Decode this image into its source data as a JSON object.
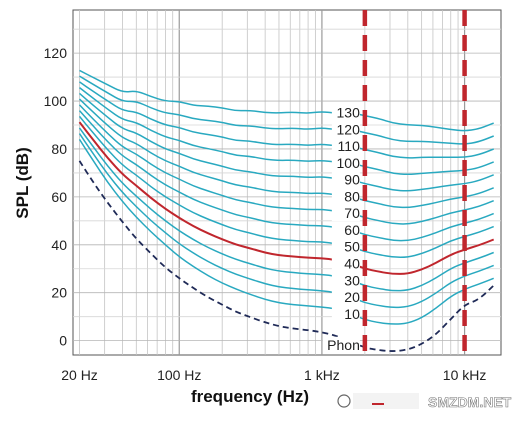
{
  "chart_data": {
    "type": "line",
    "title": "",
    "xlabel": "frequency (Hz)",
    "ylabel": "SPL (dB)",
    "x_scale": "log",
    "xlim": [
      18,
      18000
    ],
    "ylim": [
      -6,
      138
    ],
    "x_ticks": [
      {
        "value": 20,
        "label": "20 Hz"
      },
      {
        "value": 100,
        "label": "100 Hz"
      },
      {
        "value": 1000,
        "label": "1 kHz"
      },
      {
        "value": 10000,
        "label": "10 kHz"
      }
    ],
    "y_ticks": [
      0,
      20,
      40,
      60,
      80,
      100,
      120
    ],
    "grid": true,
    "phon_unit_label": "Phon",
    "phon_labels": [
      "10",
      "20",
      "30",
      "40",
      "50",
      "60",
      "70",
      "80",
      "90",
      "100",
      "110",
      "120",
      "130"
    ],
    "x_points": [
      20,
      25,
      31.5,
      40,
      50,
      63,
      80,
      100,
      125,
      160,
      200,
      250,
      315,
      400,
      500,
      630,
      800,
      1000,
      1250,
      1600,
      2000,
      2500,
      3150,
      4000,
      5000,
      6300,
      8000,
      10000,
      12500,
      16000
    ],
    "base_curve": [
      74,
      65,
      56,
      48,
      41.5,
      35.5,
      30,
      25,
      21,
      17,
      14,
      11.5,
      9.3,
      7.2,
      5.8,
      5,
      4.5,
      4,
      3.3,
      1.2,
      -1.3,
      -2.5,
      -3.2,
      -2.8,
      -0.5,
      3.5,
      8.5,
      11.5,
      13.5,
      16
    ],
    "series": [
      {
        "name": "Phon",
        "style": "dashed",
        "color": "#1f2a57",
        "values": [
          75,
          66,
          57.5,
          49.5,
          42.5,
          36.5,
          30.5,
          26,
          22,
          18,
          15,
          12,
          9.8,
          7.6,
          6,
          5,
          4.4,
          3.5,
          2.1,
          -0.5,
          -2.9,
          -4,
          -4.5,
          -3.8,
          -1.5,
          2.5,
          9,
          15,
          17,
          23
        ]
      },
      {
        "name": "10",
        "style": "solid",
        "color": "#29a9c0",
        "values": [
          84,
          75,
          66,
          58,
          51.5,
          45.5,
          40,
          35,
          31,
          27,
          24,
          21.5,
          19.3,
          17.2,
          15.8,
          15,
          14.5,
          14,
          13.3,
          11.2,
          8.7,
          7.5,
          6.8,
          7.2,
          9.5,
          13.5,
          18.5,
          21.5,
          23.5,
          26
        ]
      },
      {
        "name": "20",
        "style": "solid",
        "color": "#29a9c0",
        "values": [
          86.4,
          77.9,
          69.4,
          61.8,
          55.9,
          50.2,
          45,
          40.4,
          36.6,
          32.9,
          30.1,
          27.7,
          25.7,
          23.7,
          22.4,
          21.7,
          21.2,
          20.8,
          20.1,
          18.2,
          15.8,
          14.6,
          13.8,
          14.1,
          16.2,
          19.8,
          24.3,
          27,
          28.9,
          31.4
        ]
      },
      {
        "name": "30",
        "style": "solid",
        "color": "#29a9c0",
        "values": [
          88.8,
          80.8,
          72.8,
          65.6,
          60.3,
          54.9,
          50,
          45.8,
          42.2,
          38.8,
          36.2,
          33.9,
          32.1,
          30.2,
          29,
          28.4,
          27.9,
          27.6,
          26.9,
          25.2,
          22.9,
          21.7,
          20.8,
          21,
          22.9,
          26.1,
          30.1,
          32.5,
          34.3,
          36.8
        ]
      },
      {
        "name": "40",
        "style": "solid",
        "color": "#c0262d",
        "values": [
          91.2,
          83.7,
          76.2,
          69.4,
          64.7,
          59.6,
          55,
          51.2,
          47.8,
          44.7,
          42.3,
          40.1,
          38.5,
          36.7,
          35.6,
          35.1,
          34.6,
          34.4,
          33.7,
          32.2,
          30,
          28.8,
          27.8,
          27.9,
          29.6,
          32.4,
          35.9,
          38,
          39.7,
          42.2
        ]
      },
      {
        "name": "50",
        "style": "solid",
        "color": "#29a9c0",
        "values": [
          93.6,
          86.6,
          79.6,
          73.2,
          69.1,
          64.3,
          60,
          56.6,
          53.4,
          50.6,
          48.4,
          46.3,
          44.9,
          43.2,
          42.2,
          41.8,
          41.3,
          41.2,
          40.5,
          39.2,
          37.1,
          35.9,
          34.8,
          34.8,
          36.3,
          38.7,
          41.7,
          43.5,
          45.1,
          47.6
        ]
      },
      {
        "name": "60",
        "style": "solid",
        "color": "#29a9c0",
        "values": [
          96,
          89.5,
          83,
          77,
          73.5,
          69,
          65,
          62,
          59,
          56.5,
          54.5,
          52.5,
          51.3,
          49.7,
          48.8,
          48.5,
          48,
          48,
          47.3,
          46.2,
          44.2,
          43,
          41.8,
          41.7,
          43,
          45,
          47.5,
          49,
          50.5,
          53
        ]
      },
      {
        "name": "70",
        "style": "solid",
        "color": "#29a9c0",
        "values": [
          98.4,
          92.4,
          86.4,
          80.8,
          77.9,
          73.7,
          70,
          67.4,
          64.6,
          62.4,
          60.6,
          58.7,
          57.7,
          56.2,
          55.4,
          55.2,
          54.7,
          54.8,
          54.1,
          53.2,
          51.3,
          50.1,
          48.8,
          48.6,
          49.7,
          51.3,
          53.3,
          54.5,
          55.9,
          58.4
        ]
      },
      {
        "name": "80",
        "style": "solid",
        "color": "#29a9c0",
        "values": [
          100.8,
          95.3,
          89.8,
          84.6,
          82.3,
          78.4,
          75,
          72.8,
          70.2,
          68.3,
          66.7,
          64.9,
          64.1,
          62.7,
          62,
          61.9,
          61.4,
          61.6,
          60.9,
          60.2,
          58.4,
          57.2,
          55.8,
          55.5,
          56.4,
          57.6,
          59.1,
          60,
          61.3,
          63.8
        ]
      },
      {
        "name": "90",
        "style": "solid",
        "color": "#29a9c0",
        "values": [
          103.2,
          98.2,
          93.2,
          88.4,
          86.7,
          83.1,
          80,
          78.2,
          75.8,
          74.2,
          72.8,
          71.1,
          70.5,
          69.2,
          68.6,
          68.6,
          68.1,
          68.4,
          67.7,
          67.2,
          65.5,
          64.3,
          62.8,
          62.4,
          63.1,
          63.9,
          64.9,
          65.5,
          66.7,
          69.2
        ]
      },
      {
        "name": "100",
        "style": "solid",
        "color": "#29a9c0",
        "values": [
          105.6,
          101.1,
          96.6,
          92.2,
          91.1,
          87.8,
          85,
          83.6,
          81.4,
          80.1,
          78.9,
          77.3,
          76.9,
          75.7,
          75.2,
          75.3,
          74.8,
          75.2,
          74.5,
          74.2,
          72.6,
          71.4,
          69.8,
          69.3,
          69.8,
          70.2,
          70.7,
          71,
          72.1,
          74.6
        ]
      },
      {
        "name": "110",
        "style": "solid",
        "color": "#29a9c0",
        "values": [
          108,
          104,
          100,
          96,
          95.5,
          92.5,
          90,
          89,
          87,
          86,
          85,
          83.5,
          83.3,
          82.2,
          81.8,
          82,
          81.5,
          82,
          81.3,
          81.2,
          79.7,
          78.5,
          76.8,
          76.2,
          76.5,
          76.5,
          76.5,
          76.5,
          77.5,
          80
        ]
      },
      {
        "name": "120",
        "style": "solid",
        "color": "#29a9c0",
        "values": [
          110.4,
          106.9,
          103.4,
          99.8,
          99.9,
          97.2,
          95,
          94.4,
          92.6,
          91.9,
          91.1,
          89.7,
          89.7,
          88.7,
          88.4,
          88.7,
          88.2,
          88.8,
          88.1,
          88.2,
          86.8,
          85.6,
          83.8,
          83.1,
          83.2,
          82.8,
          82.3,
          82,
          82.9,
          85.4
        ]
      },
      {
        "name": "130",
        "style": "solid",
        "color": "#29a9c0",
        "values": [
          112.8,
          109.8,
          106.8,
          103.6,
          104.3,
          101.9,
          100,
          99.8,
          98.2,
          97.8,
          97.2,
          95.9,
          96.1,
          95.2,
          95,
          95.4,
          94.9,
          95.6,
          94.9,
          95.2,
          93.9,
          92.7,
          90.8,
          90,
          89.9,
          89.1,
          88.1,
          87.5,
          88.3,
          90.8
        ]
      }
    ],
    "annotations": [
      {
        "type": "vertical-dashed-line",
        "color": "#c0262d",
        "x": 2000
      },
      {
        "type": "vertical-dashed-line",
        "color": "#c0262d",
        "x": 10000
      }
    ],
    "watermark": "SMZDM.NET"
  }
}
